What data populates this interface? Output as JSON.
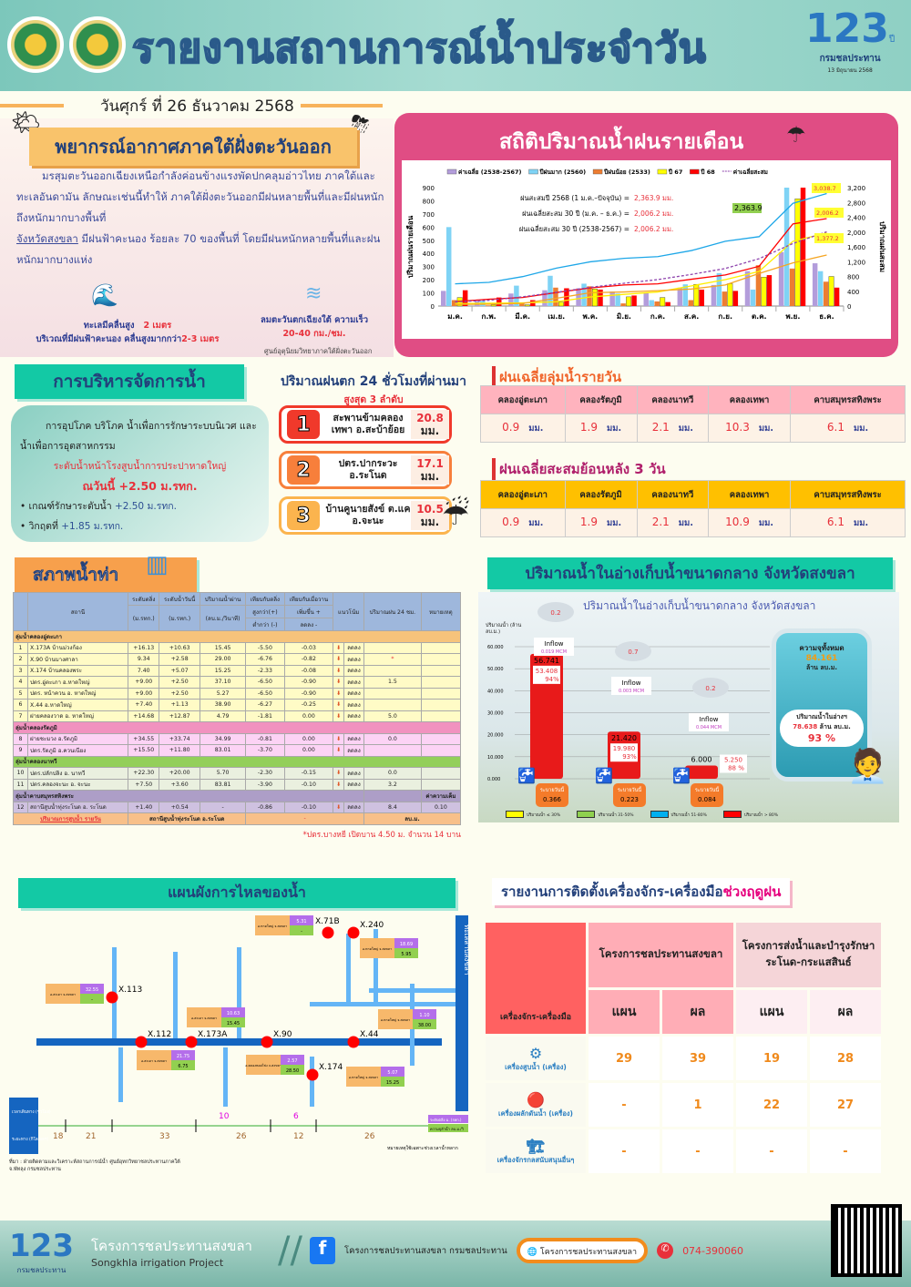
{
  "header": {
    "title": "รายงานสถานการณ์น้ำประจำวัน",
    "logo_text": "123",
    "logo_suffix": "ปี",
    "logo_org": "กรมชลประทาน",
    "logo_date": "13 มิถุนายน 2568"
  },
  "date": "วันศุกร์ ที่ 26 ธันวาคม 2568",
  "weather": {
    "title": "พยากรณ์อากาศภาคใต้ฝั่งตะวันออก",
    "para1": "มรสุมตะวันออกเฉียงเหนือกำลังค่อนข้างแรงพัดปกคลุมอ่าวไทย ภาคใต้และทะเลอันดามัน ลักษณะเช่นนี้ทำให้ ภาคใต้ฝั่งตะวันออกมีฝนหลายพื้นที่และมีฝนหนักถึงหนักมากบางพื้นที่",
    "province": "จังหวัดสงขลา",
    "para2": " มีฝนฟ้าคะนอง ร้อยละ 70 ของพื้นที่ โดยมีฝนหนักหลายพื้นที่และฝนหนักมากบางแห่ง",
    "wave_label": "ทะเลมีคลื่นสูง",
    "wave_value": "2 เมตร",
    "wave_storm": "บริเวณที่มีฝนฟ้าคะนอง คลื่นสูงมากกว่า",
    "wave_storm_value": "2-3 เมตร",
    "wind_label": "ลมตะวันตกเฉียงใต้ ความเร็ว",
    "wind_value": "20-40 กม./ชม.",
    "source": "ศูนย์อุตุนิยมวิทยาภาคใต้ฝั่งตะวันออก"
  },
  "chart_data": {
    "type": "bar",
    "title": "สถิติปริมาณน้ำฝนรายเดือน",
    "ylabel": "ปริมาณฝนรายเดือน",
    "y2label": "ปริมาณฝนสะสม",
    "ylim": [
      0,
      900
    ],
    "y2lim": [
      0,
      3200
    ],
    "yticks": [
      "0",
      "100",
      "200",
      "300",
      "400",
      "500",
      "600",
      "700",
      "800",
      "900"
    ],
    "y2ticks": [
      "0",
      "400",
      "800",
      "1,200",
      "1,600",
      "2,000",
      "2,400",
      "2,800",
      "3,200"
    ],
    "categories": [
      "ม.ค.",
      "ก.พ.",
      "มี.ค.",
      "เม.ย.",
      "พ.ค.",
      "มิ.ย.",
      "ก.ค.",
      "ส.ค.",
      "ก.ย.",
      "ต.ค.",
      "พ.ย.",
      "ธ.ค."
    ],
    "series": [
      {
        "name": "ค่าเฉลี่ย (2538-2567)",
        "color": "#b39ddb",
        "values": [
          115,
          40,
          95,
          120,
          135,
          110,
          100,
          140,
          160,
          265,
          410,
          325
        ]
      },
      {
        "name": "ปีฝนมาก (2560)",
        "color": "#7fd3f5",
        "values": [
          600,
          40,
          155,
          230,
          170,
          95,
          45,
          165,
          250,
          125,
          900,
          265
        ]
      },
      {
        "name": "ปีฝนน้อย (2533)",
        "color": "#ed7d31",
        "values": [
          45,
          5,
          20,
          140,
          150,
          20,
          35,
          45,
          110,
          310,
          285,
          185
        ]
      },
      {
        "name": "ปี 67",
        "color": "#ffff00",
        "values": [
          65,
          10,
          10,
          30,
          130,
          70,
          65,
          165,
          170,
          220,
          815,
          225
        ]
      },
      {
        "name": "ปี 68",
        "color": "#ff0000",
        "values": [
          120,
          65,
          45,
          135,
          125,
          80,
          30,
          125,
          115,
          235,
          900,
          140
        ]
      }
    ],
    "cumulative": [
      {
        "name": "ปีฝนมาก (2560)",
        "color": "#1ea7e8",
        "values": [
          600,
          640,
          795,
          1025,
          1195,
          1290,
          1335,
          1500,
          1750,
          1875,
          2775,
          3038.7
        ]
      },
      {
        "name": "ปี 68",
        "color": "#ff0000",
        "values": [
          120,
          185,
          230,
          365,
          490,
          570,
          600,
          725,
          840,
          1075,
          2220,
          2363.9
        ]
      },
      {
        "name": "ปี 67",
        "color": "#ffee00",
        "values": [
          65,
          75,
          85,
          115,
          245,
          315,
          380,
          545,
          715,
          935,
          1750,
          1975
        ]
      },
      {
        "name": "ปีฝนน้อย (2533)",
        "color": "#f5a623",
        "values": [
          45,
          50,
          70,
          210,
          360,
          380,
          415,
          460,
          570,
          880,
          1165,
          1377.2
        ]
      },
      {
        "name": "ค่าเฉลี่ยสะสม",
        "color": "#8e44ad",
        "dashed": true,
        "values": [
          115,
          155,
          250,
          370,
          505,
          615,
          715,
          855,
          1015,
          1280,
          1690,
          2006.2
        ]
      }
    ],
    "annotations": [
      {
        "label": "ฝนสะสมปี 2568 (1 ม.ค.–ปัจจุบัน) =",
        "value": "2,363.9 มม."
      },
      {
        "label": "ฝนเฉลี่ยสะสม 30 ปี (ม.ค. – ธ.ค.) =",
        "value": "2,006.2 มม."
      },
      {
        "label": "ฝนเฉลี่ยสะสม 30 ปี (2538-2567) =",
        "value": "2,006.2 มม."
      }
    ],
    "callouts": [
      "3,038.7",
      "2,363.9",
      "2,006.2",
      "1,377.2"
    ],
    "legend_placement": "top"
  },
  "management": {
    "title": "การบริหารจัดการน้ำ",
    "text": "การอุปโภค บริโภค น้ำเพื่อการรักษาระบบนิเวศ และน้ำเพื่อการอุตสาหกรรม",
    "level_label": "ระดับน้ำหน้าโรงสูบน้ำการประปาหาดใหญ่",
    "today": "ณวันนี้ +2.50 ม.รทก.",
    "bullets": [
      {
        "label": "เกณฑ์รักษาระดับน้ำ",
        "value": "+2.50 ม.รทก."
      },
      {
        "label": "วิกฤตที่",
        "value": "+1.85 ม.รทก."
      }
    ]
  },
  "top3": {
    "title": "ปริมาณฝนตก 24 ชั่วโมงที่ผ่านมา",
    "subtitle": "สูงสุด 3 ลำดับ",
    "items": [
      {
        "rank": "1",
        "name": "สะพานข้ามคลองเทพา อ.สะบ้าย้อย",
        "value": "20.8",
        "unit": "มม.",
        "color": "#f0392b"
      },
      {
        "rank": "2",
        "name": "ปตร.ปากระวะ อ.ระโนด",
        "value": "17.1",
        "unit": "มม.",
        "color": "#f77f3b"
      },
      {
        "rank": "3",
        "name": "บ้านคูนายสังข์ ต.แค อ.จะนะ",
        "value": "10.5",
        "unit": "มม.",
        "color": "#fbb44e"
      }
    ]
  },
  "daily_rain": {
    "title": "ฝนเฉลี่ยลุ่มน้ำรายวัน",
    "unit": "มม.",
    "basins": [
      "คลองอู่ตะเภา",
      "คลองรัตภูมิ",
      "คลองนาทวี",
      "คลองเทพา",
      "คาบสมุทรสทิงพระ"
    ],
    "values": [
      "0.9",
      "1.9",
      "2.1",
      "10.3",
      "6.1"
    ]
  },
  "rain3d": {
    "title": "ฝนเฉลี่ยสะสมย้อนหลัง 3 วัน",
    "unit": "มม.",
    "basins": [
      "คลองอู่ตะเภา",
      "คลองรัตภูมิ",
      "คลองนาทวี",
      "คลองเทพา",
      "คาบสมุทรสทิงพระ"
    ],
    "values": [
      "0.9",
      "1.9",
      "2.1",
      "10.9",
      "6.1"
    ]
  },
  "waterlevel": {
    "title": "สภาพน้ำท่า",
    "headers": {
      "station": "สถานี",
      "bank": "ระดับตลิ่ง",
      "today": "ระดับน้ำวันนี้",
      "flow": "ปริมาณน้ำผ่าน",
      "vsbank": "เทียบกับตลิ่ง",
      "vsyest": "เทียบกับเมื่อวาน",
      "trend": "แนวโน้ม",
      "rain": "ปริมาณฝน 24 ชม.",
      "remark": "หมายเหตุ",
      "u_msl": "(ม.รทก.)",
      "u_flow": "(ลบ.ม./วินาที)",
      "above": "สูงกว่า(+)",
      "below": "ต่ำกว่า (-)",
      "up": "เพิ่มขึ้น +",
      "down": "ลดลง -"
    },
    "groups": [
      {
        "name": "ลุ่มน้ำคลองอู่ตะเภา",
        "rows": [
          [
            "1",
            "X.173A บ้านม่วงก้อง",
            "+16.13",
            "+10.63",
            "15.45",
            "-5.50",
            "-0.03",
            "ลดลง",
            "",
            ""
          ],
          [
            "2",
            "X.90 บ้านบางศาลา",
            "9.34",
            "+2.58",
            "29.00",
            "-6.76",
            "-0.82",
            "ลดลง",
            "*",
            ""
          ],
          [
            "3",
            "X.174 บ้านคลองพระ",
            "7.40",
            "+5.07",
            "15.25",
            "-2.33",
            "-0.08",
            "ลดลง",
            "",
            ""
          ],
          [
            "4",
            "ปตร.อู่ตะเภา อ.หาดใหญ่",
            "+9.00",
            "+2.50",
            "37.10",
            "-6.50",
            "-0.90",
            "ลดลง",
            "1.5",
            ""
          ],
          [
            "5",
            "ปตร. หน้าควน อ. หาดใหญ่",
            "+9.00",
            "+2.50",
            "5.27",
            "-6.50",
            "-0.90",
            "ลดลง",
            "",
            ""
          ],
          [
            "6",
            "X.44 อ.หาดใหญ่",
            "+7.40",
            "+1.13",
            "38.90",
            "-6.27",
            "-0.25",
            "ลดลง",
            "",
            ""
          ],
          [
            "7",
            "ฝายคลองวาด อ. หาดใหญ่",
            "+14.68",
            "+12.87",
            "4.79",
            "-1.81",
            "0.00",
            "ลดลง",
            "5.0",
            ""
          ]
        ]
      },
      {
        "name": "ลุ่มน้ำคลองรัตภูมิ",
        "rows": [
          [
            "8",
            "ฝายชะมวง อ.รัตภูมิ",
            "+34.55",
            "+33.74",
            "34.99",
            "-0.81",
            "0.00",
            "ลดลง",
            "0.0",
            ""
          ],
          [
            "9",
            "ปตร.รัตภูมิ อ.ควนเนียง",
            "+15.50",
            "+11.80",
            "83.01",
            "-3.70",
            "0.00",
            "ลดลง",
            "",
            ""
          ]
        ]
      },
      {
        "name": "ลุ่มน้ำคลองนาทวี",
        "rows": [
          [
            "10",
            "ปตร.ปลักปลิง อ. นาทวี",
            "+22.30",
            "+20.00",
            "5.70",
            "-2.30",
            "-0.15",
            "ลดลง",
            "0.0",
            ""
          ],
          [
            "11",
            "ปตร.คลองจะนะ อ. จะนะ",
            "+7.50",
            "+3.60",
            "83.81",
            "-3.90",
            "-0.10",
            "ลดลง",
            "3.2",
            ""
          ]
        ]
      },
      {
        "name": "ลุ่มน้ำคาบสมุทรสทิงพระ",
        "remark_header": "ค่าความเค็ม",
        "rows": [
          [
            "12",
            "สถานีสูบน้ำทุ่งระโนด อ. ระโนด",
            "+1.40",
            "+0.54",
            "-",
            "-0.86",
            "-0.10",
            "ลดลง",
            "8.4",
            "0.10"
          ]
        ]
      }
    ],
    "pump": {
      "label": "ปริมาณการสูบน้ำ รายวัน",
      "station": "สถานีสูบน้ำทุ่งระโนด อ.ระโนด",
      "value": "-",
      "unit": "ลบ.ม."
    },
    "note": "*ปตร.บางหยี เปิดบาน 4.50 ม. จำนวน 14 บาน"
  },
  "reservoir": {
    "title": "ปริมาณน้ำในอ่างเก็บน้ำขนาดกลาง จังหวัดสงขลา",
    "chart_title": "ปริมาณน้ำในอ่างเก็บน้ำขนาดกลาง จังหวัดสงขลา",
    "axis_label": "ปริมาณน้ำ (ล้าน ลบ.ม.)",
    "yticks": [
      "0.000",
      "10.000",
      "20.000",
      "30.000",
      "40.000",
      "50.000",
      "60.000"
    ],
    "ymax": 60,
    "items": [
      {
        "capacity": "56.741",
        "current": "53.408",
        "pct": "94%",
        "cap_num": 56.741,
        "cur_num": 53.408,
        "rain": "0.2",
        "inflow_label": "Inflow",
        "inflow": "0.019 MCM",
        "release_label": "ระบายวันนี้",
        "release": "0.366"
      },
      {
        "capacity": "21.420",
        "current": "19.980",
        "pct": "93%",
        "cap_num": 21.42,
        "cur_num": 19.98,
        "rain": "0.7",
        "inflow_label": "Inflow",
        "inflow": "0.003 MCM",
        "release_label": "ระบายวันนี้",
        "release": "0.223"
      },
      {
        "capacity": "6.000",
        "current": "5.250",
        "pct": "88 %",
        "cap_num": 6.0,
        "cur_num": 5.25,
        "rain": "0.2",
        "inflow_label": "Inflow",
        "inflow": "0.044 MCM",
        "release_label": "ระบายวันนี้",
        "release": "0.084"
      }
    ],
    "total_label": "ความจุทั้งหมด",
    "total": "84.161",
    "total_unit": "ล้าน ลบ.ม.",
    "current_label": "ปริมาณน้ำในอ่างฯ",
    "current": "78.638",
    "current_unit": "ล้าน ลบ.ม.",
    "current_pct": "93 %",
    "legend": [
      {
        "color": "#ffff00",
        "label": "ปริมาณน้ำ ≤ 30%"
      },
      {
        "color": "#8fd14f",
        "label": "ปริมาณน้ำ 31-50%"
      },
      {
        "color": "#00b0f0",
        "label": "ปริมาณน้ำ 51-80%"
      },
      {
        "color": "#ff0000",
        "label": "ปริมาณน้ำ > 80%"
      }
    ]
  },
  "flow": {
    "title": "แผนผังการไหลของน้ำ",
    "lake": "ทะเลสาบสงขลา",
    "stations": [
      {
        "id": "X.113",
        "place": "อ.สะเดา จ.สงขลา",
        "level": "32.55",
        "flow": "-"
      },
      {
        "id": "X.112",
        "place": "อ.สะเดา จ.สงขลา",
        "level": "21.75",
        "flow": "6.75"
      },
      {
        "id": "X.173A",
        "place": "อ.สะเดา จ.สงขลา",
        "level": "10.63",
        "flow": "15.45"
      },
      {
        "id": "X.90",
        "place": "อ.คลองหอยโข่ง จ.สงขลา",
        "level": "2.57",
        "flow": "28.50"
      },
      {
        "id": "X.71B",
        "place": "อ.หาดใหญ่ จ.สงขลา",
        "level": "5.31",
        "flow": "-"
      },
      {
        "id": "X.240",
        "place": "อ.หาดใหญ่ จ.สงขลา",
        "level": "18.69",
        "flow": "5.95"
      },
      {
        "id": "X.44",
        "place": "อ.หาดใหญ่ จ.สงขลา",
        "level": "1.10",
        "flow": "38.00"
      },
      {
        "id": "X.174",
        "place": "อ.หาดใหญ่ จ.สงขลา",
        "level": "5.07",
        "flow": "15.25"
      }
    ],
    "times": [
      "10",
      "6"
    ],
    "distances": [
      "18",
      "21",
      "33",
      "26",
      "12",
      "26"
    ],
    "row_time": "เวลาเดินทาง (ชั่วโมง)",
    "row_dist": "ระยะทาง (กิโลเมตร)",
    "legend_level": "ระดับตลิ่ง ม. (รทก.)",
    "legend_flow": "ความจุลำน้ำ ลบ.ม./วิ",
    "note": "หมายเหตุใช้เฉพาะช่วงเวลาน้ำหลาก",
    "source": "ที่มา : ฝ่ายติดตามและวิเคราะห์สถานการณ์น้ำ ศูนย์อุทกวิทยาชลประทานภาคใต้ จ.พัทลุง กรมชลประทาน"
  },
  "machines": {
    "title": "รายงานการติดตั้งเครื่องจักร-เครื่องมือ",
    "title_accent": "ช่วงฤดูฝน",
    "col_head": "เครื่องจักร-เครื่องมือ",
    "proj1": "โครงการชลประทานสงขลา",
    "proj2": "โครงการส่งน้ำและบำรุงรักษาระโนด-กระแสสินธ์",
    "plan": "แผน",
    "result": "ผล",
    "rows": [
      {
        "name": "เครื่องสูบน้ำ (เครื่อง)",
        "icon": "water-pump-icon",
        "values": [
          "29",
          "39",
          "19",
          "28"
        ]
      },
      {
        "name": "เครื่องผลักดันน้ำ (เครื่อง)",
        "icon": "water-pusher-icon",
        "values": [
          "-",
          "1",
          "22",
          "27"
        ]
      },
      {
        "name": "เครื่องจักรกลสนับสนุนอื่นๆ",
        "icon": "machinery-icon",
        "values": [
          "-",
          "-",
          "-",
          "-"
        ]
      }
    ]
  },
  "footer": {
    "org_th": "โครงการชลประทานสงขลา",
    "org_en": "Songkhla irrigation Project",
    "facebook": "โครงการชลประทานสงขลา กรมชลประทาน",
    "website": "โครงการชลประทานสงขลา",
    "phone": "074-390060"
  }
}
